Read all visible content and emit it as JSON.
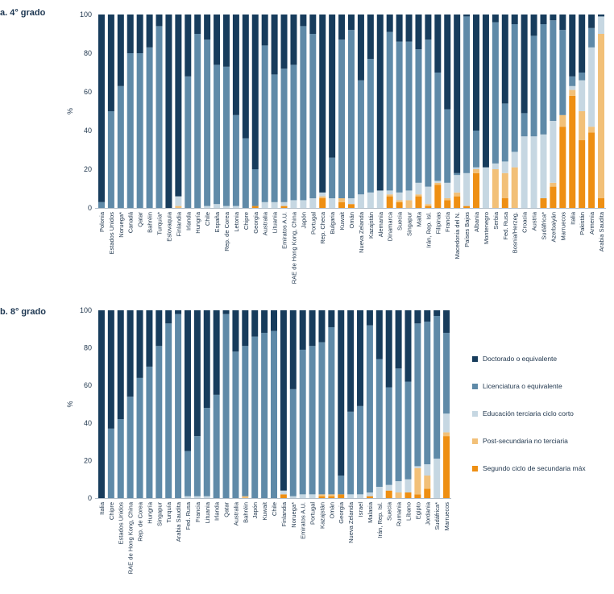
{
  "panels": {
    "a_title": "a. 4° grado",
    "b_title": "b. 8° grado"
  },
  "y_unit": "%",
  "legend": [
    {
      "label": "Doctorado o equivalente",
      "color": "#173c5c"
    },
    {
      "label": "Licenciatura o equivalente",
      "color": "#5f8aa8"
    },
    {
      "label": "Educación terciaria ciclo corto",
      "color": "#c6d7e2"
    },
    {
      "label": "Post-secundaria no terciaria",
      "color": "#f2c078"
    },
    {
      "label": "Segundo ciclo de secundaria máx",
      "color": "#ee8f13"
    }
  ],
  "chart_data": [
    {
      "type": "bar",
      "stacked": true,
      "title": "a. 4° grado",
      "ylabel": "%",
      "ylim": [
        0,
        100
      ],
      "yticks": [
        0,
        20,
        40,
        60,
        80,
        100
      ],
      "categories": [
        "Polonia",
        "Estados Unidos",
        "Noruega*",
        "Canadá",
        "Qatar",
        "Bahréin",
        "Turquía*",
        "Eslovaquia",
        "Finlandia",
        "Irlanda",
        "Hungría",
        "Chile",
        "España",
        "Rep. de Corea",
        "Letonia",
        "Chipre",
        "Georgia",
        "Australia",
        "Lituania",
        "Emiratos A.U.",
        "RAE de Hong Kong, China",
        "Japón",
        "Portugal",
        "Rep. Checa",
        "Bulgaria",
        "Kuwait",
        "Omán",
        "Nueva Zelanda",
        "Kazajstán",
        "Alemania",
        "Dinamarca",
        "Suecia",
        "Singapur",
        "Malta",
        "Irán, Rep. Isl.",
        "Filipinas",
        "Francia",
        "Macedonia del N.",
        "Países Bajos",
        "Albania",
        "Montenegro",
        "Serbia",
        "Fed. Rusa",
        "Bosnia/Herzeg.",
        "Croacia",
        "Austria",
        "Sudáfrica*",
        "Azerbaiyán",
        "Marruecos",
        "Italia",
        "Pakistán",
        "Armenia",
        "Arabia Saudita"
      ],
      "series": [
        {
          "name": "Segundo ciclo de secundaria máx",
          "values": [
            0,
            0,
            0,
            0,
            0,
            0,
            0,
            0,
            0,
            0,
            0,
            0,
            0,
            0,
            0,
            0,
            1,
            0,
            0,
            1,
            0,
            0,
            0,
            5,
            0,
            3,
            2,
            0,
            0,
            0,
            6,
            3,
            0,
            6,
            1,
            12,
            4,
            6,
            1,
            18,
            0,
            0,
            5,
            0,
            0,
            0,
            5,
            11,
            42,
            58,
            35,
            39,
            5
          ]
        },
        {
          "name": "Post-secundaria no terciaria",
          "values": [
            0,
            0,
            0,
            0,
            0,
            0,
            0,
            0,
            1,
            0,
            0,
            0,
            0,
            0,
            0,
            0,
            0,
            0,
            0,
            0,
            0,
            0,
            0,
            1,
            0,
            2,
            0,
            0,
            0,
            0,
            1,
            1,
            4,
            1,
            1,
            1,
            1,
            2,
            0,
            2,
            0,
            20,
            13,
            21,
            0,
            0,
            0,
            2,
            6,
            3,
            15,
            3,
            85
          ]
        },
        {
          "name": "Educación terciaria ciclo corto",
          "values": [
            0,
            0,
            0,
            0,
            0,
            0,
            0,
            0,
            5,
            0,
            0,
            1,
            2,
            1,
            1,
            0,
            0,
            3,
            3,
            2,
            4,
            4,
            5,
            2,
            5,
            0,
            3,
            7,
            8,
            9,
            2,
            4,
            5,
            6,
            9,
            1,
            8,
            9,
            17,
            1,
            21,
            3,
            6,
            8,
            37,
            37,
            33,
            32,
            0,
            2,
            16,
            41,
            9
          ]
        },
        {
          "name": "Licenciatura o equivalente",
          "values": [
            3,
            50,
            63,
            80,
            80,
            83,
            94,
            0,
            0,
            68,
            90,
            86,
            72,
            72,
            47,
            36,
            19,
            81,
            66,
            69,
            70,
            90,
            85,
            0,
            21,
            82,
            87,
            59,
            69,
            0,
            82,
            78,
            77,
            69,
            76,
            56,
            38,
            1,
            81,
            19,
            0,
            73,
            30,
            66,
            12,
            52,
            57,
            52,
            44,
            5,
            4,
            10,
            0
          ]
        },
        {
          "name": "Doctorado o equivalente",
          "values": [
            97,
            50,
            37,
            20,
            20,
            17,
            6,
            100,
            94,
            32,
            10,
            13,
            26,
            27,
            52,
            64,
            80,
            16,
            31,
            28,
            26,
            6,
            10,
            92,
            74,
            13,
            8,
            34,
            23,
            91,
            9,
            14,
            14,
            18,
            13,
            30,
            49,
            82,
            1,
            60,
            79,
            4,
            46,
            5,
            51,
            11,
            5,
            3,
            8,
            32,
            30,
            7,
            1
          ]
        }
      ]
    },
    {
      "type": "bar",
      "stacked": true,
      "title": "b. 8° grado",
      "ylabel": "%",
      "ylim": [
        0,
        100
      ],
      "yticks": [
        0,
        20,
        40,
        60,
        80,
        100
      ],
      "categories": [
        "Italia",
        "Chipre",
        "Estados Unidos",
        "RAE de Hong Kong, China",
        "Rep. de Corea",
        "Hungría",
        "Singapur",
        "Turquía",
        "Arabia Saudita",
        "Fed. Rusa",
        "Francia",
        "Lituania",
        "Irlanda",
        "Qatar",
        "Australia",
        "Bahréin",
        "Japón",
        "Kuwait",
        "Chile",
        "Finlandia",
        "Noruega*",
        "Emiratos A.U.",
        "Portugal",
        "Kazajstán",
        "Omán",
        "Georgia",
        "Nueva Zelanda",
        "Israel",
        "Malasia",
        "Irán, Rep. Isl.",
        "Suecia",
        "Rumania",
        "Líbano",
        "Egipto",
        "Jordania",
        "Sudáfrica*",
        "Marruecos"
      ],
      "series": [
        {
          "name": "Segundo ciclo de secundaria máx",
          "values": [
            0,
            0,
            0,
            0,
            0,
            0,
            0,
            0,
            0,
            0,
            0,
            0,
            0,
            0,
            0,
            0,
            0,
            0,
            0,
            2,
            0,
            0,
            0,
            1,
            1,
            2,
            0,
            0,
            1,
            0,
            4,
            0,
            3,
            2,
            5,
            0,
            33
          ]
        },
        {
          "name": "Post-secundaria no terciaria",
          "values": [
            0,
            0,
            0,
            0,
            0,
            0,
            0,
            0,
            0,
            0,
            0,
            0,
            0,
            0,
            0,
            1,
            0,
            0,
            0,
            0,
            0,
            0,
            0,
            1,
            1,
            0,
            0,
            0,
            0,
            0,
            0,
            3,
            0,
            14,
            7,
            0,
            2
          ]
        },
        {
          "name": "Educación terciaria ciclo corto",
          "values": [
            0,
            0,
            0,
            0,
            0,
            0,
            0,
            0,
            0,
            1,
            1,
            1,
            0,
            0,
            0,
            0,
            0,
            0,
            0,
            2,
            1,
            2,
            2,
            0,
            0,
            0,
            2,
            2,
            2,
            6,
            3,
            6,
            7,
            1,
            6,
            21,
            10
          ]
        },
        {
          "name": "Licenciatura o equivalente",
          "values": [
            0,
            37,
            42,
            54,
            64,
            70,
            81,
            93,
            98,
            24,
            32,
            47,
            55,
            98,
            78,
            80,
            86,
            88,
            89,
            0,
            57,
            77,
            79,
            81,
            89,
            10,
            44,
            47,
            89,
            68,
            52,
            60,
            52,
            76,
            76,
            76,
            43
          ]
        },
        {
          "name": "Doctorado o equivalente",
          "values": [
            100,
            63,
            58,
            46,
            36,
            30,
            19,
            7,
            2,
            75,
            67,
            52,
            45,
            2,
            22,
            19,
            14,
            12,
            11,
            96,
            42,
            21,
            19,
            17,
            9,
            88,
            54,
            51,
            8,
            26,
            41,
            31,
            38,
            7,
            6,
            3,
            12
          ]
        }
      ]
    }
  ]
}
